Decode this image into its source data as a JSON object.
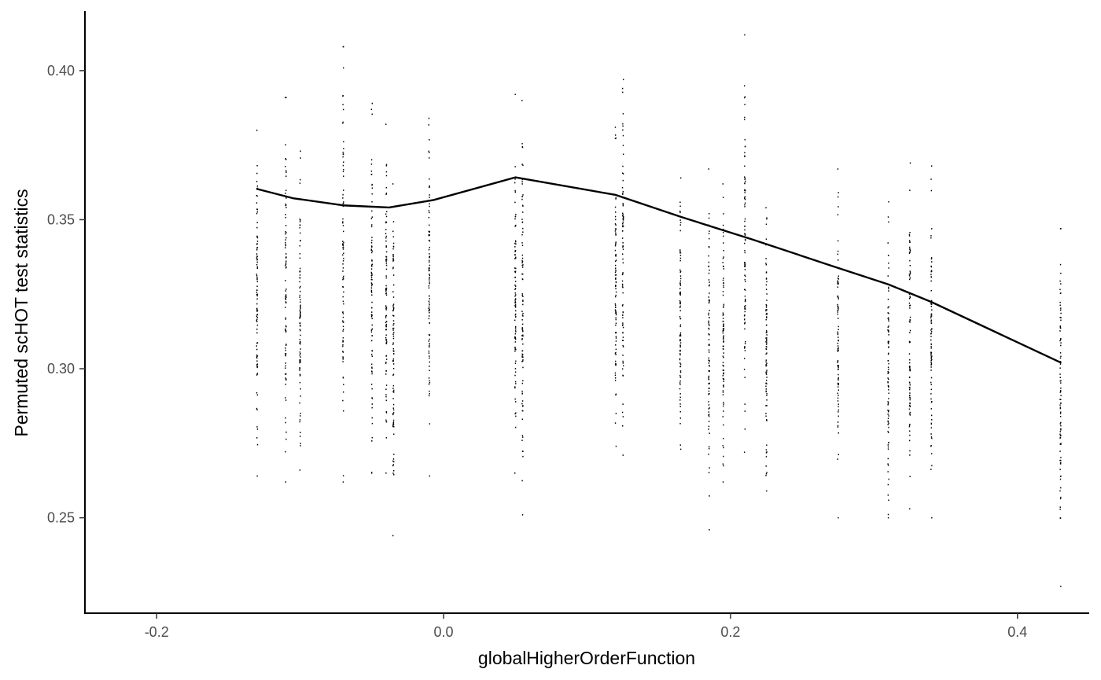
{
  "chart_data": {
    "type": "scatter",
    "title": "",
    "xlabel": "globalHigherOrderFunction",
    "ylabel": "Permuted scHOT test statistics",
    "xlim": [
      -0.25,
      0.45
    ],
    "ylim": [
      0.218,
      0.42
    ],
    "grid": false,
    "x_ticks": [
      {
        "value": -0.2,
        "label": "-0.2"
      },
      {
        "value": 0.0,
        "label": "0.0"
      },
      {
        "value": 0.2,
        "label": "0.2"
      },
      {
        "value": 0.4,
        "label": "0.4"
      }
    ],
    "y_ticks": [
      {
        "value": 0.25,
        "label": "0.25"
      },
      {
        "value": 0.3,
        "label": "0.30"
      },
      {
        "value": 0.35,
        "label": "0.35"
      },
      {
        "value": 0.4,
        "label": "0.40"
      }
    ],
    "colors": {
      "points": "#000000",
      "smooth_line": "#000000",
      "axis": "#000000",
      "tick_label": "#4d4d4d"
    },
    "point_groups": [
      {
        "x": -0.13,
        "ymin": 0.264,
        "ymax": 0.38
      },
      {
        "x": -0.11,
        "ymin": 0.262,
        "ymax": 0.391
      },
      {
        "x": -0.1,
        "ymin": 0.266,
        "ymax": 0.373
      },
      {
        "x": -0.07,
        "ymin": 0.262,
        "ymax": 0.408
      },
      {
        "x": -0.05,
        "ymin": 0.265,
        "ymax": 0.389
      },
      {
        "x": -0.04,
        "ymin": 0.265,
        "ymax": 0.382
      },
      {
        "x": -0.035,
        "ymin": 0.244,
        "ymax": 0.362
      },
      {
        "x": -0.01,
        "ymin": 0.264,
        "ymax": 0.384
      },
      {
        "x": 0.05,
        "ymin": 0.265,
        "ymax": 0.392
      },
      {
        "x": 0.055,
        "ymin": 0.251,
        "ymax": 0.39
      },
      {
        "x": 0.12,
        "ymin": 0.274,
        "ymax": 0.381
      },
      {
        "x": 0.125,
        "ymin": 0.271,
        "ymax": 0.397
      },
      {
        "x": 0.165,
        "ymin": 0.273,
        "ymax": 0.364
      },
      {
        "x": 0.185,
        "ymin": 0.246,
        "ymax": 0.367
      },
      {
        "x": 0.195,
        "ymin": 0.262,
        "ymax": 0.362
      },
      {
        "x": 0.21,
        "ymin": 0.272,
        "ymax": 0.412
      },
      {
        "x": 0.225,
        "ymin": 0.259,
        "ymax": 0.354
      },
      {
        "x": 0.275,
        "ymin": 0.25,
        "ymax": 0.367
      },
      {
        "x": 0.31,
        "ymin": 0.25,
        "ymax": 0.356
      },
      {
        "x": 0.325,
        "ymin": 0.253,
        "ymax": 0.369
      },
      {
        "x": 0.34,
        "ymin": 0.25,
        "ymax": 0.368
      },
      {
        "x": 0.43,
        "ymin": 0.227,
        "ymax": 0.347
      }
    ],
    "series": [
      {
        "name": "smooth",
        "x": [
          -0.13,
          -0.105,
          -0.07,
          -0.038,
          -0.007,
          0.05,
          0.12,
          0.165,
          0.215,
          0.27,
          0.31,
          0.34,
          0.43
        ],
        "y": [
          0.3603,
          0.3572,
          0.3548,
          0.3541,
          0.3566,
          0.3642,
          0.3583,
          0.351,
          0.3434,
          0.3346,
          0.3283,
          0.3224,
          0.3021
        ]
      }
    ]
  }
}
